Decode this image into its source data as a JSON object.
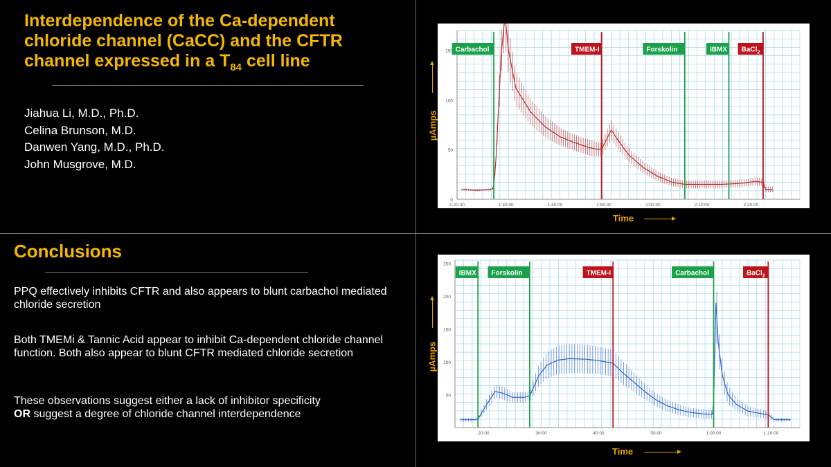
{
  "title": {
    "line1": "Interdependence of the Ca-dependent",
    "line2": "chloride channel (CaCC) and the CFTR",
    "line3_pre": "channel expressed in a T",
    "line3_sub": "84",
    "line3_post": " cell line"
  },
  "authors": [
    "Jiahua Li, M.D., Ph.D.",
    "Celina Brunson, M.D.",
    "Danwen Yang, M.D., Ph.D.",
    "John Musgrove, M.D."
  ],
  "conclusions": {
    "heading": "Conclusions",
    "p1": "PPQ effectively inhibits CFTR and also appears to blunt carbachol mediated chloride secretion",
    "p2": "Both TMEMi & Tannic Acid appear to inhibit Ca-dependent chloride channel function. Both also appear to blunt CFTR mediated chloride secretion",
    "p3_bold": "OR",
    "p3_a": "These observations suggest either a lack of inhibitor specificity",
    "p3_b": " suggest a degree of chloride channel interdependence"
  },
  "colors": {
    "accent": "#f5b800",
    "green": "#1aa24a",
    "red": "#c0121a",
    "trace1": "#b72b2b",
    "trace2": "#2f62c4",
    "grid": "#9fd4ee"
  },
  "chart_data": [
    {
      "type": "line",
      "xlabel": "Time",
      "ylabel": "µAmps",
      "x_unit": "minutes (clock h:mm:ss)",
      "xlim": [
        80,
        150
      ],
      "ylim": [
        0,
        170
      ],
      "yticks": [
        0,
        50,
        100,
        150
      ],
      "ytick_labels": [
        "0",
        "50",
        "100",
        "150"
      ],
      "xticks": [
        80,
        90,
        100,
        110,
        120,
        130,
        140
      ],
      "xtick_labels": [
        "1:20:00",
        "1:30:00",
        "1:40:00",
        "1:50:00",
        "2:00:00",
        "2:10:00",
        "2:20:00"
      ],
      "grid": true,
      "events": [
        {
          "label": "Carbachol",
          "x": 87.5,
          "color": "green"
        },
        {
          "label": "TMEM-I",
          "x": 109.5,
          "color": "red"
        },
        {
          "label": "Forskolin",
          "x": 126.5,
          "color": "green"
        },
        {
          "label": "IBMX",
          "x": 135.5,
          "color": "green"
        },
        {
          "label": "BaCl",
          "label_sub": "2",
          "x": 142.5,
          "color": "red"
        }
      ],
      "series": [
        {
          "x": [
            81,
            84,
            87,
            87.5,
            88,
            89,
            89.8,
            90.5,
            92,
            95,
            98,
            101,
            104,
            107,
            109,
            109.5,
            110.5,
            111.5,
            112.5,
            115,
            118,
            121,
            124,
            126.5,
            130,
            134,
            138,
            141,
            142.5,
            143,
            144.5
          ],
          "values": [
            10,
            9,
            10,
            12,
            45,
            145,
            185,
            150,
            112,
            88,
            73,
            63,
            57,
            52,
            50,
            50,
            60,
            70,
            62,
            45,
            32,
            23,
            17,
            15,
            15,
            15,
            16,
            18,
            17,
            10,
            10
          ],
          "spread": [
            1,
            1,
            1,
            1,
            8,
            20,
            28,
            24,
            17,
            13,
            11,
            9,
            8,
            8,
            7,
            7,
            9,
            10,
            9,
            7,
            6,
            5,
            4,
            4,
            4,
            4,
            4,
            4,
            4,
            3,
            3
          ]
        }
      ]
    },
    {
      "type": "line",
      "xlabel": "Time",
      "ylabel": "µAmps",
      "x_unit": "minutes (clock mm:ss / h:mm:ss)",
      "xlim": [
        15,
        75
      ],
      "ylim": [
        0,
        255
      ],
      "yticks": [
        50,
        100,
        150,
        200,
        250
      ],
      "ytick_labels": [
        "50",
        "100",
        "150",
        "200",
        "250"
      ],
      "xticks": [
        20,
        30,
        40,
        50,
        60,
        70
      ],
      "xtick_labels": [
        "20:00",
        "30:00",
        "40:00",
        "50:00",
        "1:00:00",
        "1:10:00"
      ],
      "grid": true,
      "events": [
        {
          "label": "IBMX",
          "x": 19,
          "color": "green"
        },
        {
          "label": "Forskolin",
          "x": 28,
          "color": "green"
        },
        {
          "label": "TMEM-I",
          "x": 42.5,
          "color": "red"
        },
        {
          "label": "Carbachol",
          "x": 60,
          "color": "green"
        },
        {
          "label": "BaCl",
          "label_sub": "2",
          "x": 69.5,
          "color": "red"
        }
      ],
      "series": [
        {
          "x": [
            16,
            18.5,
            19,
            20.5,
            22,
            23.5,
            25,
            27,
            28,
            29.5,
            31,
            33,
            35,
            38,
            40,
            42.5,
            44,
            46,
            48,
            50,
            52,
            54,
            56,
            58,
            59.8,
            60,
            60.4,
            60.8,
            61.5,
            62.5,
            64,
            66,
            69,
            69.5,
            70.5,
            73.5
          ],
          "values": [
            12,
            12,
            13,
            35,
            55,
            52,
            46,
            46,
            48,
            78,
            95,
            103,
            105,
            104,
            102,
            98,
            85,
            70,
            55,
            42,
            33,
            27,
            23,
            21,
            20,
            40,
            190,
            130,
            80,
            50,
            35,
            25,
            20,
            20,
            12,
            12
          ],
          "spread": [
            3,
            3,
            3,
            8,
            10,
            10,
            8,
            8,
            8,
            16,
            20,
            22,
            22,
            22,
            21,
            20,
            18,
            15,
            12,
            10,
            9,
            8,
            7,
            7,
            6,
            6,
            45,
            30,
            20,
            14,
            10,
            8,
            6,
            6,
            3,
            3
          ]
        }
      ]
    }
  ]
}
